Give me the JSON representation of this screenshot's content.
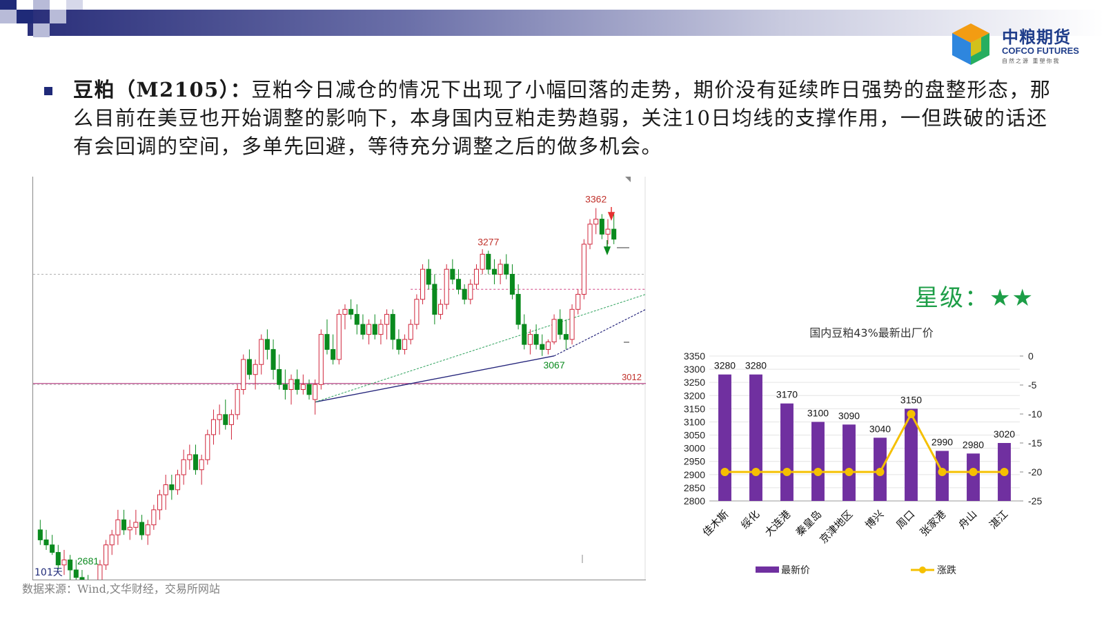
{
  "header": {
    "logo_cn": "中粮期货",
    "logo_en": "COFCO FUTURES",
    "logo_slogan": "自然之源 重塑你我"
  },
  "paragraph": {
    "title": "豆粕（M2105）：",
    "body": "豆粕今日减仓的情况下出现了小幅回落的走势，期价没有延续昨日强势的盘整形态，那么目前在美豆也开始调整的影响下，本身国内豆粕走势趋弱，关注10日均线的支撑作用，一但跌破的话还有会回调的空间，多单先回避，等待充分调整之后的做多机会。"
  },
  "rating": {
    "label": "星级：",
    "stars": "★★"
  },
  "source_note": "数据来源：Wind,文华财经，交易所网站",
  "chart_data": [
    {
      "type": "candlestick",
      "series": [
        {
          "name": "M2105",
          "up_color": "#d0243a",
          "down_color": "#0a8a1e"
        }
      ],
      "annotations": [
        {
          "label": "3362",
          "kind": "high",
          "value": 3362
        },
        {
          "label": "3277",
          "kind": "high",
          "value": 3277
        },
        {
          "label": "3067",
          "kind": "low",
          "value": 3067
        },
        {
          "label": "2681",
          "kind": "low",
          "value": 2681
        },
        {
          "label": "3012",
          "kind": "horizontal-line",
          "value": 3012
        }
      ],
      "period_label": "101天",
      "candles": [
        [
          2720,
          2740,
          2690,
          2700
        ],
        [
          2700,
          2720,
          2680,
          2690
        ],
        [
          2690,
          2710,
          2670,
          2675
        ],
        [
          2675,
          2690,
          2640,
          2650
        ],
        [
          2650,
          2680,
          2630,
          2660
        ],
        [
          2660,
          2670,
          2620,
          2640
        ],
        [
          2640,
          2660,
          2610,
          2625
        ],
        [
          2625,
          2640,
          2600,
          2610
        ],
        [
          2610,
          2630,
          2590,
          2600
        ],
        [
          2600,
          2620,
          2590,
          2610
        ],
        [
          2610,
          2660,
          2600,
          2650
        ],
        [
          2650,
          2700,
          2640,
          2690
        ],
        [
          2690,
          2720,
          2670,
          2710
        ],
        [
          2710,
          2760,
          2690,
          2740
        ],
        [
          2740,
          2760,
          2710,
          2720
        ],
        [
          2720,
          2740,
          2700,
          2725
        ],
        [
          2725,
          2760,
          2710,
          2735
        ],
        [
          2735,
          2750,
          2700,
          2710
        ],
        [
          2710,
          2740,
          2690,
          2730
        ],
        [
          2730,
          2770,
          2720,
          2760
        ],
        [
          2760,
          2800,
          2740,
          2790
        ],
        [
          2790,
          2830,
          2760,
          2810
        ],
        [
          2810,
          2830,
          2780,
          2800
        ],
        [
          2800,
          2840,
          2790,
          2830
        ],
        [
          2830,
          2880,
          2810,
          2860
        ],
        [
          2860,
          2890,
          2840,
          2870
        ],
        [
          2870,
          2890,
          2830,
          2840
        ],
        [
          2840,
          2870,
          2810,
          2860
        ],
        [
          2860,
          2920,
          2850,
          2910
        ],
        [
          2910,
          2960,
          2890,
          2940
        ],
        [
          2940,
          2970,
          2910,
          2950
        ],
        [
          2950,
          2980,
          2920,
          2930
        ],
        [
          2930,
          2960,
          2900,
          2950
        ],
        [
          2950,
          3010,
          2940,
          3000
        ],
        [
          3000,
          3070,
          2990,
          3060
        ],
        [
          3060,
          3080,
          3020,
          3030
        ],
        [
          3030,
          3060,
          3000,
          3050
        ],
        [
          3050,
          3110,
          3030,
          3100
        ],
        [
          3100,
          3120,
          3060,
          3080
        ],
        [
          3080,
          3100,
          3020,
          3040
        ],
        [
          3040,
          3070,
          3000,
          3010
        ],
        [
          3010,
          3040,
          2980,
          3000
        ],
        [
          3000,
          3030,
          2970,
          3020
        ],
        [
          3020,
          3040,
          2990,
          3000
        ],
        [
          3000,
          3030,
          2990,
          3010
        ],
        [
          3010,
          3020,
          2980,
          2990
        ],
        [
          2980,
          3020,
          2950,
          3010
        ],
        [
          3010,
          3120,
          3000,
          3110
        ],
        [
          3110,
          3140,
          3070,
          3080
        ],
        [
          3080,
          3110,
          3050,
          3060
        ],
        [
          3060,
          3160,
          3050,
          3150
        ],
        [
          3150,
          3170,
          3120,
          3160
        ],
        [
          3160,
          3180,
          3140,
          3150
        ],
        [
          3150,
          3170,
          3110,
          3130
        ],
        [
          3130,
          3150,
          3100,
          3110
        ],
        [
          3110,
          3140,
          3090,
          3130
        ],
        [
          3130,
          3150,
          3100,
          3110
        ],
        [
          3110,
          3140,
          3090,
          3130
        ],
        [
          3130,
          3160,
          3100,
          3150
        ],
        [
          3150,
          3160,
          3080,
          3100
        ],
        [
          3100,
          3120,
          3070,
          3080
        ],
        [
          3080,
          3110,
          3070,
          3100
        ],
        [
          3100,
          3140,
          3090,
          3130
        ],
        [
          3130,
          3190,
          3120,
          3180
        ],
        [
          3180,
          3250,
          3170,
          3240
        ],
        [
          3240,
          3260,
          3200,
          3210
        ],
        [
          3210,
          3230,
          3130,
          3150
        ],
        [
          3150,
          3180,
          3140,
          3170
        ],
        [
          3170,
          3250,
          3160,
          3240
        ],
        [
          3240,
          3260,
          3210,
          3220
        ],
        [
          3220,
          3240,
          3190,
          3200
        ],
        [
          3200,
          3210,
          3170,
          3180
        ],
        [
          3180,
          3220,
          3170,
          3210
        ],
        [
          3210,
          3250,
          3200,
          3240
        ],
        [
          3240,
          3280,
          3230,
          3270
        ],
        [
          3270,
          3277,
          3230,
          3240
        ],
        [
          3240,
          3260,
          3210,
          3230
        ],
        [
          3230,
          3260,
          3210,
          3250
        ],
        [
          3250,
          3270,
          3220,
          3230
        ],
        [
          3230,
          3250,
          3180,
          3190
        ],
        [
          3190,
          3210,
          3120,
          3130
        ],
        [
          3130,
          3150,
          3080,
          3090
        ],
        [
          3090,
          3120,
          3070,
          3110
        ],
        [
          3110,
          3130,
          3080,
          3090
        ],
        [
          3090,
          3110,
          3067,
          3080
        ],
        [
          3080,
          3100,
          3070,
          3095
        ],
        [
          3095,
          3150,
          3090,
          3140
        ],
        [
          3140,
          3160,
          3100,
          3110
        ],
        [
          3110,
          3140,
          3080,
          3100
        ],
        [
          3100,
          3170,
          3090,
          3160
        ],
        [
          3160,
          3200,
          3150,
          3190
        ],
        [
          3190,
          3300,
          3180,
          3290
        ],
        [
          3290,
          3340,
          3280,
          3330
        ],
        [
          3330,
          3362,
          3310,
          3340
        ],
        [
          3340,
          3350,
          3300,
          3310
        ],
        [
          3310,
          3340,
          3290,
          3320
        ],
        [
          3320,
          3350,
          3290,
          3300
        ]
      ]
    },
    {
      "type": "bar",
      "title": "国内豆粕43%最新出厂价",
      "categories": [
        "佳木斯",
        "绥化",
        "大连港",
        "秦皇岛",
        "京津地区",
        "博兴",
        "周口",
        "张家港",
        "舟山",
        "湛江"
      ],
      "series": [
        {
          "name": "最新价",
          "axis": "left",
          "color": "#7030a0",
          "values": [
            3280,
            3280,
            3170,
            3100,
            3090,
            3040,
            3150,
            2990,
            2980,
            3020
          ]
        },
        {
          "name": "涨跌",
          "axis": "right",
          "type": "line",
          "color": "#f5c000",
          "values": [
            -20,
            -20,
            -20,
            -20,
            -20,
            -20,
            -10,
            -20,
            -20,
            -20
          ]
        }
      ],
      "ylim": [
        2800,
        3350
      ],
      "yticks": [
        3350,
        3300,
        3250,
        3200,
        3150,
        3100,
        3050,
        3000,
        2950,
        2900,
        2850,
        2800
      ],
      "y2lim": [
        -25,
        0
      ],
      "y2ticks": [
        0,
        -5,
        -10,
        -15,
        -20,
        -25
      ],
      "legend": "bottom"
    }
  ]
}
